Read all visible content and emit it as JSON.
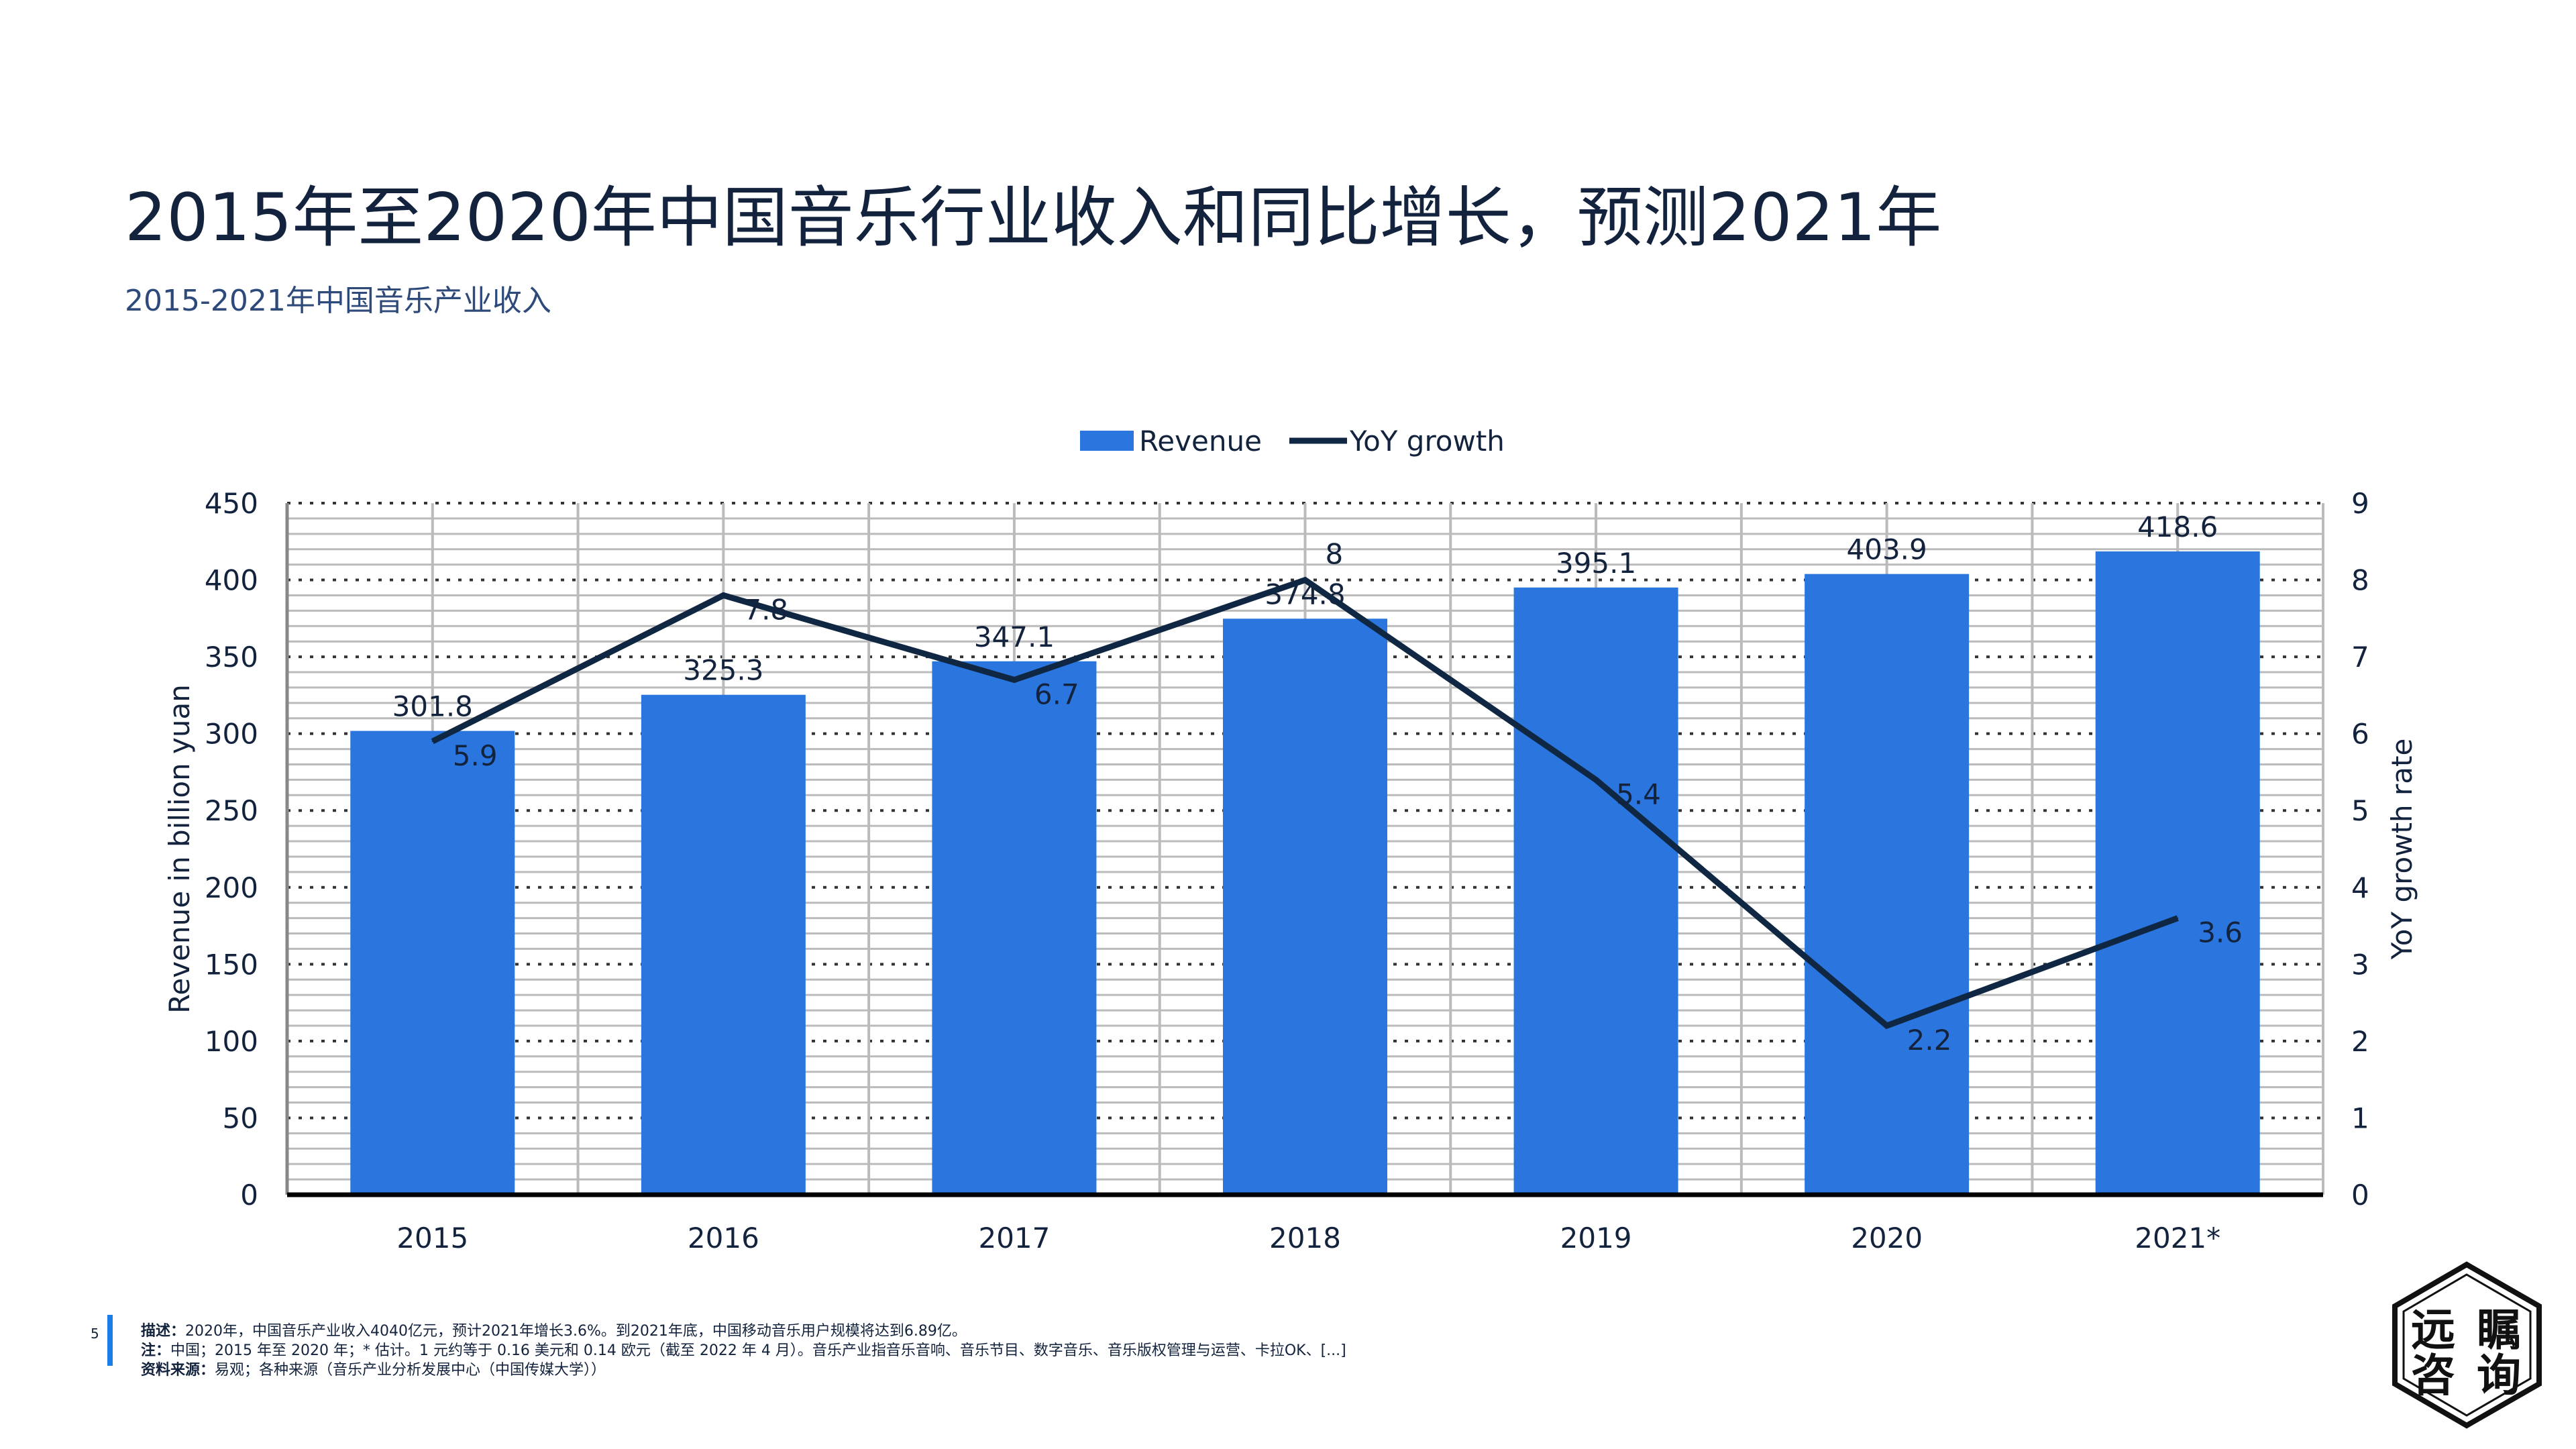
{
  "title": "2015年至2020年中国音乐行业收入和同比增长，预测2021年",
  "subtitle": "2015-2021年中国音乐产业收入",
  "page_number": "5",
  "footer": {
    "description_label": "描述：",
    "description": "2020年，中国音乐产业收入4040亿元，预计2021年增长3.6%。到2021年底，中国移动音乐用户规模将达到6.89亿。",
    "note_label": "注：",
    "note": "中国；2015 年至 2020 年；* 估计。1 元约等于 0.16 美元和 0.14 欧元（截至 2022 年 4 月）。音乐产业指音乐音响、音乐节目、数字音乐、音乐版权管理与运营、卡拉OK、[...]",
    "source_label": "资料来源：",
    "source": "易观；各种来源（音乐产业分析发展中心（中国传媒大学））"
  },
  "logo": {
    "text": [
      "远",
      "瞩",
      "咨",
      "询"
    ]
  },
  "chart_data": {
    "type": "bar",
    "categories": [
      "2015",
      "2016",
      "2017",
      "2018",
      "2019",
      "2020",
      "2021*"
    ],
    "series": [
      {
        "name": "Revenue",
        "type": "bar",
        "axis": "left",
        "values": [
          301.8,
          325.3,
          347.1,
          374.8,
          395.1,
          403.9,
          418.6
        ],
        "labels": [
          "301.8",
          "325.3",
          "347.1",
          "374.8",
          "395.1",
          "403.9",
          "418.6"
        ],
        "color": "#2b76de"
      },
      {
        "name": "YoY growth",
        "type": "line",
        "axis": "right",
        "values": [
          5.9,
          7.8,
          6.7,
          8,
          5.4,
          2.2,
          3.6
        ],
        "labels": [
          "5.9",
          "7.8",
          "6.7",
          "8",
          "5.4",
          "2.2",
          "3.6"
        ],
        "color": "#0f2742"
      }
    ],
    "ylabel": "Revenue in billion yuan",
    "y2label": "YoY growth rate",
    "ylim": [
      0,
      450
    ],
    "y2lim": [
      0,
      9
    ],
    "yticks": [
      "0",
      "50",
      "100",
      "150",
      "200",
      "250",
      "300",
      "350",
      "400",
      "450"
    ],
    "y2ticks": [
      "0",
      "1",
      "2",
      "3",
      "4",
      "5",
      "6",
      "7",
      "8",
      "9"
    ],
    "grid": true,
    "legend": "top-center"
  }
}
